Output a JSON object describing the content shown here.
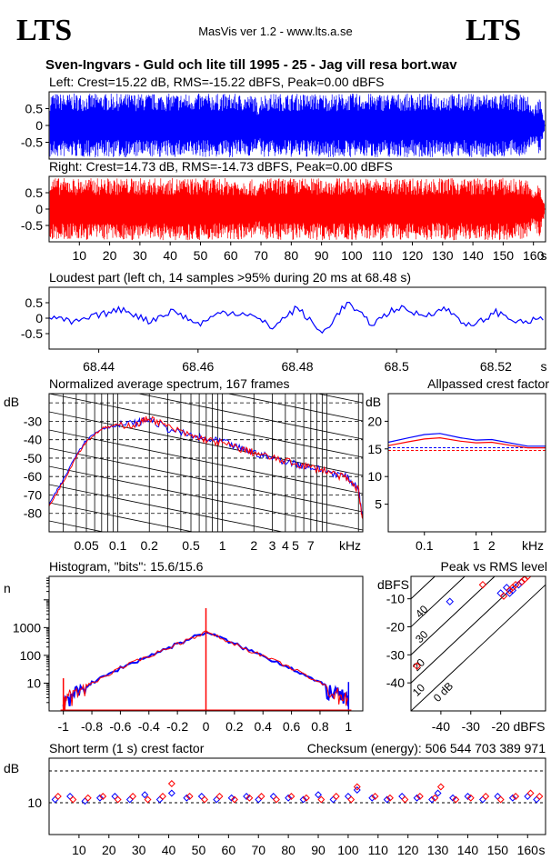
{
  "header": {
    "logo_left": "LTS",
    "logo_right": "LTS",
    "app_title": "MasVis ver 1.2 - www.lts.a.se",
    "file_title": "Sven-Ingvars - Guld och lite till 1995 - 25 - Jag vill resa bort.wav"
  },
  "chart_data": [
    {
      "id": "left_waveform",
      "type": "area",
      "title": "Left: Crest=15.22 dB, RMS=-15.22 dBFS, Peak=0.00 dBFS",
      "yticks": [
        "0.5",
        "0",
        "-0.5"
      ],
      "ylim": [
        -1,
        1
      ],
      "xlim": [
        0,
        164
      ],
      "color": "#0000ff",
      "envelope_times_s": [
        0,
        1,
        3,
        10,
        20,
        30,
        40,
        50,
        60,
        68,
        69,
        70,
        80,
        90,
        100,
        110,
        120,
        130,
        140,
        150,
        158,
        160,
        162,
        164
      ],
      "envelope_amplitude": [
        0.95,
        1.0,
        0.95,
        0.95,
        0.95,
        0.95,
        0.95,
        0.95,
        0.95,
        0.9,
        0.6,
        0.95,
        0.95,
        0.95,
        0.95,
        0.95,
        0.95,
        0.95,
        0.95,
        0.95,
        0.9,
        0.5,
        0.9,
        0.05
      ]
    },
    {
      "id": "right_waveform",
      "type": "area",
      "title": "Right: Crest=14.73 dB, RMS=-14.73 dBFS, Peak=0.00 dBFS",
      "yticks": [
        "0.5",
        "0",
        "-0.5"
      ],
      "ylim": [
        -1,
        1
      ],
      "xlim": [
        0,
        164
      ],
      "xticks": [
        "10",
        "20",
        "30",
        "40",
        "50",
        "60",
        "70",
        "80",
        "90",
        "100",
        "110",
        "120",
        "130",
        "140",
        "150",
        "160",
        "s"
      ],
      "color": "#ff0000",
      "envelope_times_s": [
        0,
        1,
        3,
        10,
        20,
        30,
        40,
        50,
        60,
        68,
        69,
        70,
        80,
        90,
        100,
        110,
        120,
        130,
        140,
        150,
        158,
        160,
        162,
        164
      ],
      "envelope_amplitude": [
        0.95,
        1.0,
        0.95,
        0.95,
        0.95,
        0.95,
        0.95,
        0.95,
        0.95,
        0.9,
        0.6,
        0.95,
        0.95,
        0.95,
        0.95,
        0.95,
        0.95,
        0.95,
        0.95,
        0.95,
        0.9,
        0.5,
        0.9,
        0.05
      ]
    },
    {
      "id": "loudest_part",
      "type": "line",
      "title": "Loudest part (left  ch, 14 samples >95% during 20 ms at 68.48 s)",
      "yticks": [
        "0.5",
        "0",
        "-0.5"
      ],
      "xticks": [
        "68.44",
        "68.46",
        "68.48",
        "68.5",
        "68.52",
        "s"
      ],
      "xlim": [
        68.43,
        68.53
      ],
      "ylim": [
        -1,
        1
      ],
      "series": [
        {
          "color": "#0000ff",
          "x": [
            68.43,
            68.435,
            68.44,
            68.445,
            68.45,
            68.455,
            68.46,
            68.465,
            68.47,
            68.475,
            68.48,
            68.485,
            68.49,
            68.495,
            68.5,
            68.505,
            68.51,
            68.515,
            68.52,
            68.525,
            68.53
          ],
          "y": [
            0.05,
            -0.15,
            0.1,
            0.3,
            -0.1,
            0.25,
            -0.2,
            0.2,
            0.15,
            -0.3,
            0.35,
            -0.5,
            0.5,
            -0.2,
            0.35,
            0.1,
            0.3,
            -0.3,
            0.2,
            -0.15,
            0.0
          ]
        }
      ]
    },
    {
      "id": "avg_spectrum",
      "type": "line",
      "title": "Normalized average spectrum, 167 frames",
      "ylabel": "dB",
      "xlabel": "kHz",
      "xscale": "log",
      "yticks": [
        "-30",
        "-40",
        "-50",
        "-60",
        "-70",
        "-80"
      ],
      "xticks": [
        "0.05",
        "0.1",
        "0.2",
        "0.5",
        "1",
        "2",
        "3",
        "4",
        "5",
        "7",
        "kHz"
      ],
      "xlim": [
        0.022,
        22
      ],
      "ylim": [
        -90,
        -15
      ],
      "series": [
        {
          "color": "#0000ff",
          "x": [
            0.022,
            0.03,
            0.04,
            0.05,
            0.07,
            0.1,
            0.15,
            0.2,
            0.3,
            0.5,
            0.7,
            1,
            1.5,
            2,
            3,
            5,
            7,
            10,
            15,
            20,
            22
          ],
          "y": [
            -75,
            -62,
            -48,
            -40,
            -34,
            -32,
            -31,
            -29,
            -34,
            -38,
            -40,
            -41,
            -45,
            -47,
            -50,
            -53,
            -55,
            -57,
            -60,
            -66,
            -84
          ]
        },
        {
          "color": "#ff0000",
          "x": [
            0.022,
            0.03,
            0.04,
            0.05,
            0.07,
            0.1,
            0.15,
            0.2,
            0.3,
            0.5,
            0.7,
            1,
            1.5,
            2,
            3,
            5,
            7,
            10,
            15,
            20,
            22
          ],
          "y": [
            -76,
            -63,
            -49,
            -41,
            -34,
            -32,
            -32,
            -28,
            -33,
            -38,
            -40,
            -42,
            -45,
            -47,
            -50,
            -53,
            -55,
            -57,
            -61,
            -67,
            -85
          ]
        }
      ]
    },
    {
      "id": "allpassed_crest",
      "type": "line",
      "title": "Allpassed crest factor",
      "ylabel": "dB",
      "xlabel": "kHz",
      "xscale": "log",
      "yticks": [
        "20",
        "15",
        "10",
        "5"
      ],
      "xticks": [
        "0.1",
        "1",
        "2",
        "kHz"
      ],
      "xlim": [
        0.02,
        22
      ],
      "ylim": [
        0,
        25
      ],
      "reference_lines": [
        15.22,
        14.73
      ],
      "series": [
        {
          "color": "#0000ff",
          "x": [
            0.02,
            0.05,
            0.1,
            0.2,
            0.5,
            1,
            2,
            5,
            10,
            22
          ],
          "y": [
            16.2,
            17.0,
            17.6,
            17.8,
            17.0,
            16.6,
            16.7,
            16.0,
            15.5,
            15.5
          ]
        },
        {
          "color": "#ff0000",
          "x": [
            0.02,
            0.05,
            0.1,
            0.2,
            0.5,
            1,
            2,
            5,
            10,
            22
          ],
          "y": [
            15.6,
            16.3,
            16.8,
            17.0,
            16.4,
            16.1,
            16.2,
            15.6,
            15.2,
            15.2
          ]
        }
      ]
    },
    {
      "id": "histogram",
      "type": "line",
      "title": "Histogram, \"bits\": 15.6/15.6",
      "ylabel": "n",
      "yscale": "log",
      "yticks": [
        "1000",
        "100",
        "10"
      ],
      "xticks": [
        "-1",
        "-0.8",
        "-0.6",
        "-0.4",
        "-0.2",
        "0",
        "0.2",
        "0.4",
        "0.6",
        "0.8",
        "1"
      ],
      "xlim": [
        -1.1,
        1.1
      ],
      "ylim": [
        1,
        70000
      ],
      "series": [
        {
          "color": "#0000ff",
          "x": [
            -1,
            -0.98,
            -0.9,
            -0.8,
            -0.6,
            -0.4,
            -0.2,
            0,
            0.2,
            0.4,
            0.6,
            0.8,
            0.9,
            0.98,
            1
          ],
          "y": [
            2,
            4,
            6,
            10,
            35,
            95,
            260,
            700,
            260,
            95,
            35,
            10,
            6,
            4,
            2
          ]
        },
        {
          "color": "#ff0000",
          "x": [
            -1,
            -0.98,
            -0.9,
            -0.8,
            -0.6,
            -0.4,
            -0.2,
            0,
            0.2,
            0.4,
            0.6,
            0.8,
            0.9,
            0.98,
            1
          ],
          "y": [
            2,
            4,
            6,
            10,
            35,
            95,
            260,
            700,
            260,
            95,
            35,
            10,
            6,
            4,
            2
          ]
        }
      ],
      "spikes": [
        {
          "x": -1,
          "y": 15,
          "color": "#ff0000"
        },
        {
          "x": 0,
          "y": 5000,
          "color": "#ff0000"
        },
        {
          "x": 1,
          "y": 11,
          "color": "#0000ff"
        }
      ]
    },
    {
      "id": "peak_vs_rms",
      "type": "scatter",
      "title": "Peak vs RMS level",
      "ylabel": "dBFS",
      "xlabel": "dBFS",
      "yticks": [
        "-10",
        "-20",
        "-30",
        "-40"
      ],
      "xticks": [
        "-40",
        "-30",
        "-20",
        "dBFS"
      ],
      "diagonal_labels": [
        "40",
        "30",
        "20",
        "10",
        "0 dB"
      ],
      "xlim": [
        -50,
        -5
      ],
      "ylim": [
        -50,
        -2
      ],
      "series": [
        {
          "color": "#0000ff",
          "x": [
            -37,
            -17,
            -16,
            -18,
            -20,
            -14,
            -13
          ],
          "y": [
            -11,
            -8,
            -7,
            -6,
            -8,
            -5,
            -4
          ]
        },
        {
          "color": "#ff0000",
          "x": [
            -48,
            -16,
            -15,
            -17,
            -19,
            -13,
            -12,
            -11,
            -26
          ],
          "y": [
            -34,
            -6,
            -5,
            -7,
            -9,
            -4,
            -3,
            -2,
            -5
          ]
        }
      ]
    },
    {
      "id": "short_term_crest",
      "type": "scatter",
      "title": "Short term (1 s) crest factor",
      "ylabel": "dB",
      "yticks": [
        "10"
      ],
      "xticks": [
        "10",
        "20",
        "30",
        "40",
        "50",
        "60",
        "70",
        "80",
        "90",
        "100",
        "110",
        "120",
        "130",
        "140",
        "150",
        "160",
        "s"
      ],
      "xlim": [
        0,
        166
      ],
      "ylim": [
        0,
        24
      ],
      "checksum": "Checksum (energy):   506 544 703 389 971",
      "series": [
        {
          "color": "#0000ff",
          "x": [
            2,
            7,
            12,
            17,
            22,
            27,
            32,
            37,
            41,
            46,
            51,
            56,
            61,
            66,
            70,
            75,
            80,
            85,
            90,
            95,
            100,
            103,
            108,
            113,
            118,
            123,
            128,
            130,
            135,
            140,
            145,
            150,
            155,
            160,
            163
          ],
          "y": [
            11,
            12,
            10.5,
            11.5,
            12,
            11,
            12.5,
            11,
            13,
            11.5,
            12,
            11,
            11.5,
            12,
            11,
            12,
            11.5,
            11,
            12.5,
            11,
            12,
            14,
            11.5,
            11,
            12,
            11.5,
            11,
            13,
            11.5,
            12,
            11,
            12,
            11.5,
            12,
            11
          ]
        },
        {
          "color": "#ff0000",
          "x": [
            3,
            8,
            13,
            18,
            23,
            28,
            33,
            38,
            41,
            47,
            52,
            57,
            62,
            67,
            71,
            76,
            81,
            86,
            91,
            96,
            101,
            103,
            109,
            114,
            119,
            124,
            129,
            131,
            136,
            141,
            146,
            151,
            156,
            161,
            164
          ],
          "y": [
            12,
            11,
            11.5,
            12,
            11,
            12,
            11,
            12,
            16,
            12,
            11,
            12,
            11,
            11.5,
            12,
            11,
            12,
            11.5,
            11,
            12,
            11,
            15,
            12,
            11.5,
            11,
            12,
            11.5,
            15,
            11,
            11.5,
            12,
            11,
            12,
            13,
            12
          ]
        }
      ]
    }
  ]
}
